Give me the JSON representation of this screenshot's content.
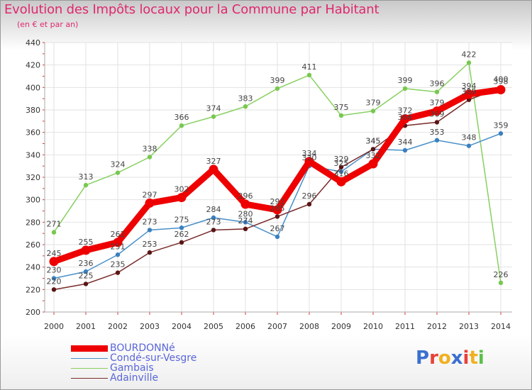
{
  "header": {
    "title": "Evolution des Impôts locaux pour la Commune par Habitant",
    "subtitle": "(en € et par an)"
  },
  "logo": {
    "letters": [
      "P",
      "r",
      "o",
      "x",
      "i",
      "t",
      "i"
    ],
    "colors": [
      "#3b6fd0",
      "#e8403a",
      "#f0b020",
      "#3b6fd0",
      "#e8403a",
      "#f0b020",
      "#5cbf4a"
    ]
  },
  "chart_data": {
    "type": "line",
    "title": "Evolution des Impôts locaux pour la Commune par Habitant",
    "subtitle": "(en € et par an)",
    "x": [
      "2000",
      "2001",
      "2002",
      "2003",
      "2004",
      "2005",
      "2006",
      "2007",
      "2008",
      "2009",
      "2010",
      "2011",
      "2012",
      "2013",
      "2014"
    ],
    "ylim": [
      200,
      440
    ],
    "yticks": [
      200,
      220,
      240,
      260,
      280,
      300,
      320,
      340,
      360,
      380,
      400,
      420,
      440
    ],
    "grid": true,
    "legend_position": "bottom-left",
    "series": [
      {
        "name": "BOURDONNé",
        "color": "#ee0000",
        "values": [
          245,
          255,
          262,
          297,
          302,
          327,
          296,
          291,
          334,
          316,
          332,
          372,
          379,
          394,
          398
        ]
      },
      {
        "name": "Condé-sur-Vesgre",
        "color": "#4a90c8",
        "values": [
          230,
          236,
          251,
          273,
          275,
          284,
          280,
          267,
          330,
          325,
          345,
          344,
          353,
          348,
          359
        ]
      },
      {
        "name": "Gambais",
        "color": "#88d060",
        "values": [
          271,
          313,
          324,
          338,
          366,
          374,
          383,
          399,
          411,
          375,
          379,
          399,
          396,
          422,
          226
        ]
      },
      {
        "name": "Adainville",
        "color": "#7a2a2a",
        "values": [
          220,
          225,
          235,
          253,
          262,
          273,
          274,
          285,
          296,
          329,
          345,
          366,
          369,
          389,
          400
        ]
      }
    ]
  }
}
